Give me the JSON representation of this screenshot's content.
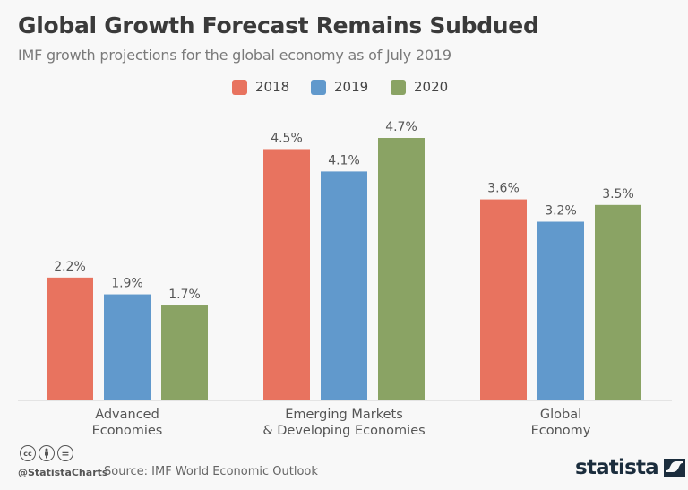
{
  "header": {
    "title": "Global Growth Forecast Remains Subdued",
    "subtitle": "IMF growth projections for the global economy as of July 2019"
  },
  "legend": [
    {
      "label": "2018",
      "color": "#e8735f"
    },
    {
      "label": "2019",
      "color": "#6199cc"
    },
    {
      "label": "2020",
      "color": "#8aa364"
    }
  ],
  "chart_data": {
    "type": "bar",
    "title": "Global Growth Forecast Remains Subdued",
    "subtitle": "IMF growth projections for the global economy as of July 2019",
    "categories": [
      [
        "Advanced",
        "Economies"
      ],
      [
        "Emerging Markets",
        "& Developing Economies"
      ],
      [
        "Global",
        "Economy"
      ]
    ],
    "series": [
      {
        "name": "2018",
        "color": "#e8735f",
        "values": [
          2.2,
          4.5,
          3.6
        ],
        "labels": [
          "2.2%",
          "4.5%",
          "3.6%"
        ]
      },
      {
        "name": "2019",
        "color": "#6199cc",
        "values": [
          1.9,
          4.1,
          3.2
        ],
        "labels": [
          "1.9%",
          "4.1%",
          "3.2%"
        ]
      },
      {
        "name": "2020",
        "color": "#8aa364",
        "values": [
          1.7,
          4.7,
          3.5
        ],
        "labels": [
          "1.7%",
          "4.7%",
          "3.5%"
        ]
      }
    ],
    "xlabel": "",
    "ylabel": "",
    "ylim": [
      0,
      4.7
    ],
    "grid": false,
    "legend_position": "top-center",
    "unit": "%"
  },
  "footer": {
    "license_icons": [
      "cc-icon",
      "attribution-icon",
      "no-derivatives-icon"
    ],
    "cc_text": "cc",
    "by_text": "Ⓘ",
    "nd_text": "=",
    "handle": "@StatistaCharts",
    "source": "Source: IMF World Economic Outlook",
    "logo_text": "statista",
    "logo_color": "#1b2d3d"
  }
}
